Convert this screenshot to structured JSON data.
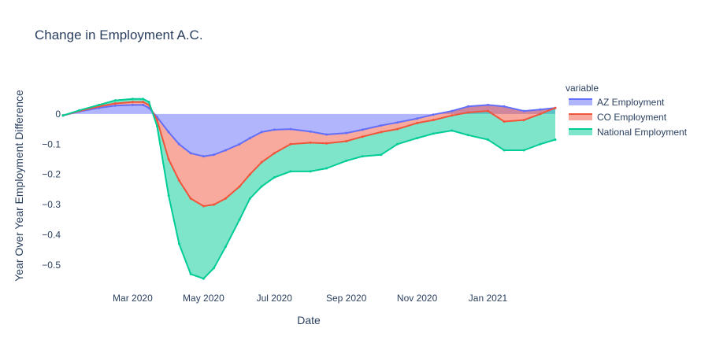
{
  "chart_data": {
    "type": "area",
    "title": "Change in Employment A.C.",
    "xlabel": "Date",
    "ylabel": "Year Over Year Employment Difference",
    "x_start": "2020-01-01",
    "x_end": "2021-02-28",
    "xlim": [
      "2020-01-01",
      "2021-02-28"
    ],
    "ylim": [
      -0.555,
      0.13
    ],
    "y_ticks": [
      0,
      -0.1,
      -0.2,
      -0.3,
      -0.4,
      -0.5
    ],
    "y_tick_labels": [
      "0",
      "−0.1",
      "−0.2",
      "−0.3",
      "−0.4",
      "−0.5"
    ],
    "x_ticks": [
      "2020-03-01",
      "2020-05-01",
      "2020-07-01",
      "2020-09-01",
      "2020-11-01",
      "2021-01-01"
    ],
    "x_tick_labels": [
      "Mar 2020",
      "May 2020",
      "Jul 2020",
      "Sep 2020",
      "Nov 2020",
      "Jan 2021"
    ],
    "fill": "tozeroy",
    "legend": {
      "title": "variable",
      "position": "right"
    },
    "series": [
      {
        "name": "AZ Employment",
        "color": "#636efa",
        "fill": "#636efa",
        "points": [
          [
            "2020-01-01",
            -0.005
          ],
          [
            "2020-01-15",
            0.008
          ],
          [
            "2020-02-01",
            0.02
          ],
          [
            "2020-02-15",
            0.028
          ],
          [
            "2020-03-01",
            0.03
          ],
          [
            "2020-03-10",
            0.03
          ],
          [
            "2020-03-15",
            0.02
          ],
          [
            "2020-03-22",
            -0.01
          ],
          [
            "2020-04-01",
            -0.06
          ],
          [
            "2020-04-10",
            -0.1
          ],
          [
            "2020-04-20",
            -0.13
          ],
          [
            "2020-05-01",
            -0.14
          ],
          [
            "2020-05-10",
            -0.135
          ],
          [
            "2020-05-20",
            -0.12
          ],
          [
            "2020-06-01",
            -0.1
          ],
          [
            "2020-06-10",
            -0.08
          ],
          [
            "2020-06-20",
            -0.06
          ],
          [
            "2020-07-01",
            -0.052
          ],
          [
            "2020-07-15",
            -0.05
          ],
          [
            "2020-08-01",
            -0.058
          ],
          [
            "2020-08-15",
            -0.068
          ],
          [
            "2020-09-01",
            -0.063
          ],
          [
            "2020-09-15",
            -0.052
          ],
          [
            "2020-10-01",
            -0.038
          ],
          [
            "2020-10-15",
            -0.028
          ],
          [
            "2020-11-01",
            -0.015
          ],
          [
            "2020-11-15",
            -0.002
          ],
          [
            "2020-12-01",
            0.01
          ],
          [
            "2020-12-15",
            0.025
          ],
          [
            "2021-01-01",
            0.03
          ],
          [
            "2021-01-15",
            0.025
          ],
          [
            "2021-02-01",
            0.01
          ],
          [
            "2021-02-15",
            0.015
          ],
          [
            "2021-02-28",
            0.02
          ]
        ]
      },
      {
        "name": "CO Employment",
        "color": "#ef553b",
        "fill": "#ef553b",
        "points": [
          [
            "2020-01-01",
            -0.005
          ],
          [
            "2020-01-15",
            0.01
          ],
          [
            "2020-02-01",
            0.025
          ],
          [
            "2020-02-15",
            0.035
          ],
          [
            "2020-03-01",
            0.04
          ],
          [
            "2020-03-10",
            0.04
          ],
          [
            "2020-03-15",
            0.03
          ],
          [
            "2020-03-22",
            -0.02
          ],
          [
            "2020-04-01",
            -0.15
          ],
          [
            "2020-04-10",
            -0.22
          ],
          [
            "2020-04-20",
            -0.28
          ],
          [
            "2020-05-01",
            -0.305
          ],
          [
            "2020-05-10",
            -0.3
          ],
          [
            "2020-05-20",
            -0.28
          ],
          [
            "2020-06-01",
            -0.24
          ],
          [
            "2020-06-10",
            -0.2
          ],
          [
            "2020-06-20",
            -0.16
          ],
          [
            "2020-07-01",
            -0.13
          ],
          [
            "2020-07-15",
            -0.1
          ],
          [
            "2020-08-01",
            -0.095
          ],
          [
            "2020-08-15",
            -0.097
          ],
          [
            "2020-09-01",
            -0.09
          ],
          [
            "2020-09-15",
            -0.075
          ],
          [
            "2020-10-01",
            -0.06
          ],
          [
            "2020-10-15",
            -0.05
          ],
          [
            "2020-11-01",
            -0.03
          ],
          [
            "2020-11-15",
            -0.02
          ],
          [
            "2020-12-01",
            -0.005
          ],
          [
            "2020-12-15",
            0.005
          ],
          [
            "2021-01-01",
            0.01
          ],
          [
            "2021-01-15",
            -0.025
          ],
          [
            "2021-02-01",
            -0.02
          ],
          [
            "2021-02-15",
            0.0
          ],
          [
            "2021-02-28",
            0.02
          ]
        ]
      },
      {
        "name": "National Employment",
        "color": "#00cc96",
        "fill": "#00cc96",
        "points": [
          [
            "2020-01-01",
            -0.005
          ],
          [
            "2020-01-15",
            0.012
          ],
          [
            "2020-02-01",
            0.03
          ],
          [
            "2020-02-15",
            0.045
          ],
          [
            "2020-03-01",
            0.05
          ],
          [
            "2020-03-10",
            0.05
          ],
          [
            "2020-03-15",
            0.04
          ],
          [
            "2020-03-22",
            -0.04
          ],
          [
            "2020-04-01",
            -0.27
          ],
          [
            "2020-04-10",
            -0.43
          ],
          [
            "2020-04-20",
            -0.53
          ],
          [
            "2020-05-01",
            -0.545
          ],
          [
            "2020-05-10",
            -0.51
          ],
          [
            "2020-05-20",
            -0.44
          ],
          [
            "2020-06-01",
            -0.35
          ],
          [
            "2020-06-10",
            -0.28
          ],
          [
            "2020-06-20",
            -0.24
          ],
          [
            "2020-07-01",
            -0.21
          ],
          [
            "2020-07-15",
            -0.19
          ],
          [
            "2020-08-01",
            -0.19
          ],
          [
            "2020-08-15",
            -0.18
          ],
          [
            "2020-09-01",
            -0.155
          ],
          [
            "2020-09-15",
            -0.14
          ],
          [
            "2020-10-01",
            -0.135
          ],
          [
            "2020-10-15",
            -0.1
          ],
          [
            "2020-11-01",
            -0.08
          ],
          [
            "2020-11-15",
            -0.065
          ],
          [
            "2020-12-01",
            -0.055
          ],
          [
            "2020-12-15",
            -0.07
          ],
          [
            "2021-01-01",
            -0.085
          ],
          [
            "2021-01-15",
            -0.12
          ],
          [
            "2021-02-01",
            -0.12
          ],
          [
            "2021-02-15",
            -0.1
          ],
          [
            "2021-02-28",
            -0.085
          ]
        ]
      }
    ]
  }
}
